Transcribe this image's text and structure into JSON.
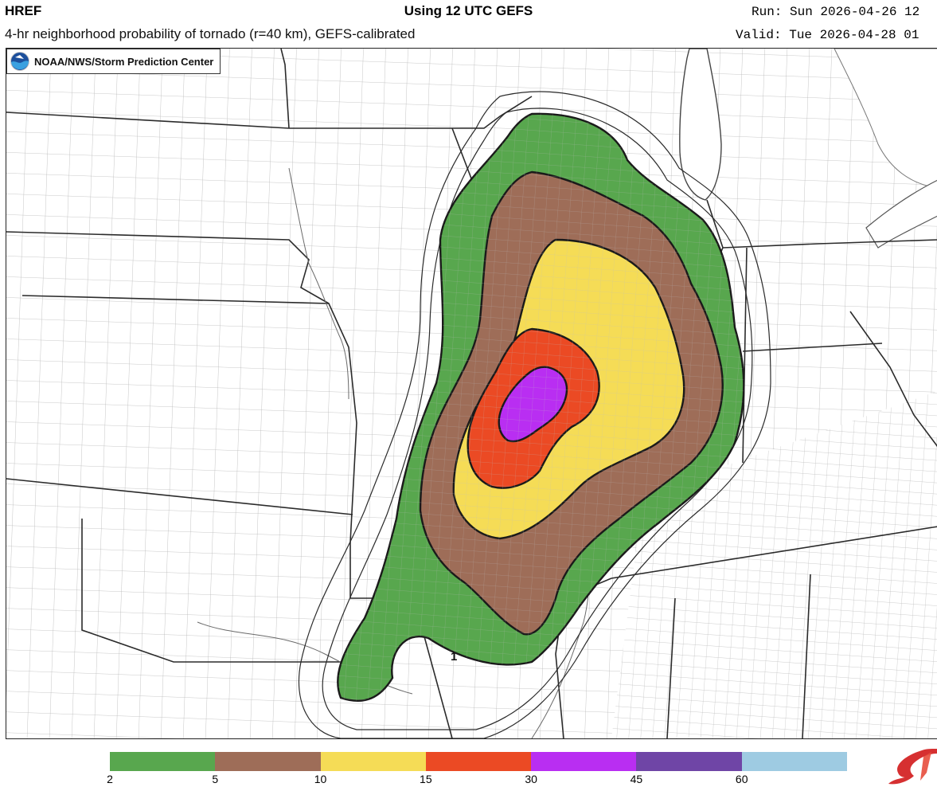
{
  "header": {
    "model": "HREF",
    "title": "Using 12 UTC GEFS",
    "subtitle": "4-hr neighborhood probability of tornado (r=40 km), GEFS-calibrated",
    "run": "Run: Sun 2026-04-26 12",
    "valid": "Valid: Tue 2026-04-28 01"
  },
  "credit": {
    "text": "NOAA/NWS/Storm Prediction Center",
    "logo_icon": "noaa-logo-icon"
  },
  "map": {
    "contour_label": "1",
    "fill_colors": [
      "#58a74e",
      "#9e6d58",
      "#f5dc56",
      "#eb4a24",
      "#b92ef2"
    ]
  },
  "legend": {
    "ticks": [
      "2",
      "5",
      "10",
      "15",
      "30",
      "45",
      "60"
    ],
    "colors": [
      "#58a74e",
      "#9e6d58",
      "#f5dc56",
      "#eb4a24",
      "#b92ef2",
      "#6f45a6",
      "#9ecbe2"
    ],
    "spc_logo_icon": "spc-logo-icon"
  }
}
